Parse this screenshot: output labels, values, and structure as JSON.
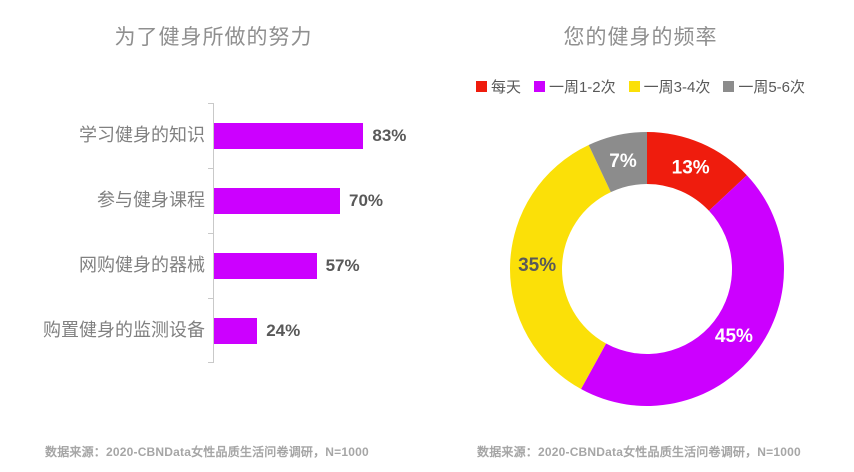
{
  "accent_colors": {
    "magenta": "#CC00FF",
    "red": "#EF1C0D",
    "yellow": "#FBE008",
    "gray": "#8C8C8C",
    "axis": "#C9C9C9"
  },
  "chart_data": [
    {
      "type": "bar",
      "orientation": "horizontal",
      "title": "为了健身所做的努力",
      "categories": [
        "学习健身的知识",
        "参与健身课程",
        "网购健身的器械",
        "购置健身的监测设备"
      ],
      "values": [
        83,
        70,
        57,
        24
      ],
      "value_labels": [
        "83%",
        "70%",
        "57%",
        "24%"
      ],
      "bar_color": "#CC00FF",
      "xlim": [
        0,
        100
      ],
      "grid": false,
      "source": "数据来源：2020-CBNData女性品质生活问卷调研，N=1000"
    },
    {
      "type": "pie",
      "subtype": "donut",
      "title": "您的健身的频率",
      "legend_position": "top",
      "direction": "clockwise",
      "start_angle_deg": 0,
      "slices": [
        {
          "label": "每天",
          "value": 13,
          "value_label": "13%",
          "color": "#EF1C0D",
          "label_color": "#FFFFFF"
        },
        {
          "label": "一周1-2次",
          "value": 45,
          "value_label": "45%",
          "color": "#CC00FF",
          "label_color": "#FFFFFF"
        },
        {
          "label": "一周3-4次",
          "value": 35,
          "value_label": "35%",
          "color": "#FBE008",
          "label_color": "#595959"
        },
        {
          "label": "一周5-6次",
          "value": 7,
          "value_label": "7%",
          "color": "#8C8C8C",
          "label_color": "#FFFFFF"
        }
      ],
      "source": "数据来源：2020-CBNData女性品质生活问卷调研，N=1000"
    }
  ]
}
